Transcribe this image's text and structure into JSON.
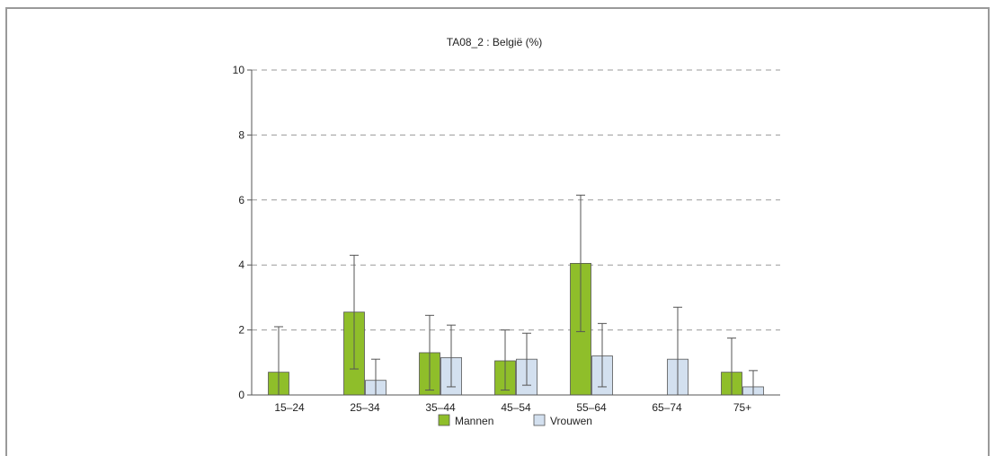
{
  "chart_data": {
    "type": "bar",
    "title": "TA08_2 : België  (%)",
    "xlabel": "",
    "ylabel": "",
    "categories": [
      "15‒24",
      "25‒34",
      "35‒44",
      "45‒54",
      "55‒64",
      "65‒74",
      "75+"
    ],
    "ylim": [
      0,
      10
    ],
    "yticks": [
      0,
      2,
      4,
      6,
      8,
      10
    ],
    "grid": true,
    "legend_position": "bottom",
    "series": [
      {
        "name": "Mannen",
        "color": "#8fbe2a",
        "values": [
          0.7,
          2.55,
          1.3,
          1.05,
          4.05,
          null,
          0.7
        ],
        "error_low": [
          null,
          0.8,
          0.15,
          0.15,
          1.95,
          null,
          null
        ],
        "error_high": [
          2.1,
          4.3,
          2.45,
          2.0,
          6.15,
          null,
          1.75
        ]
      },
      {
        "name": "Vrouwen",
        "color": "#d3e0ef",
        "values": [
          null,
          0.45,
          1.15,
          1.1,
          1.2,
          1.1,
          0.25
        ],
        "error_low": [
          null,
          null,
          0.25,
          0.3,
          0.25,
          null,
          null
        ],
        "error_high": [
          null,
          1.1,
          2.15,
          1.9,
          2.2,
          2.7,
          0.75
        ]
      }
    ]
  }
}
